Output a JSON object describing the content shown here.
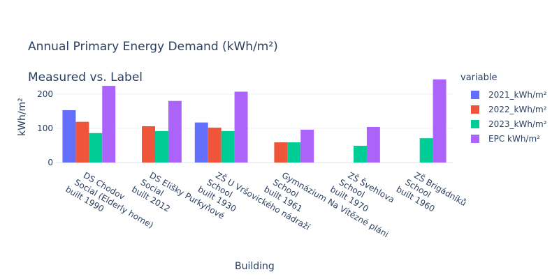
{
  "chart_data": {
    "type": "bar",
    "title": "Annual Primary Energy Demand (kWh/m²)",
    "subtitle": "Measured vs. Label",
    "xlabel": "Building",
    "ylabel": "kWh/m²",
    "ylim": [
      0,
      265
    ],
    "yticks": [
      0,
      100,
      200
    ],
    "grid": true,
    "legend_title": "variable",
    "legend_position": "right",
    "categories": [
      [
        "DS Chodov",
        "Social (Elderly home)",
        "built 1990"
      ],
      [
        "DS Elišky Purkyňové",
        "Social",
        "built 2012"
      ],
      [
        "ZŠ U Vršovického nádraží",
        "School",
        "built 1930"
      ],
      [
        "Gymnázium Na Vítězné pláni",
        "School",
        "built 1961"
      ],
      [
        "ZŠ Švehlova",
        "School",
        "built 1970"
      ],
      [
        "ZŠ Brigádníků",
        "School",
        "built 1960"
      ]
    ],
    "series": [
      {
        "name": "2021_kWh/m²",
        "color": "#636efa",
        "values": [
          153,
          null,
          117,
          null,
          null,
          null
        ]
      },
      {
        "name": "2022_kWh/m²",
        "color": "#ef553b",
        "values": [
          119,
          106,
          102,
          59,
          null,
          null
        ]
      },
      {
        "name": "2023_kWh/m²",
        "color": "#00cc96",
        "values": [
          86,
          92,
          92,
          59,
          49,
          71
        ]
      },
      {
        "name": "EPC kWh/m²",
        "color": "#ab63fa",
        "values": [
          224,
          180,
          207,
          96,
          104,
          243
        ]
      }
    ]
  }
}
